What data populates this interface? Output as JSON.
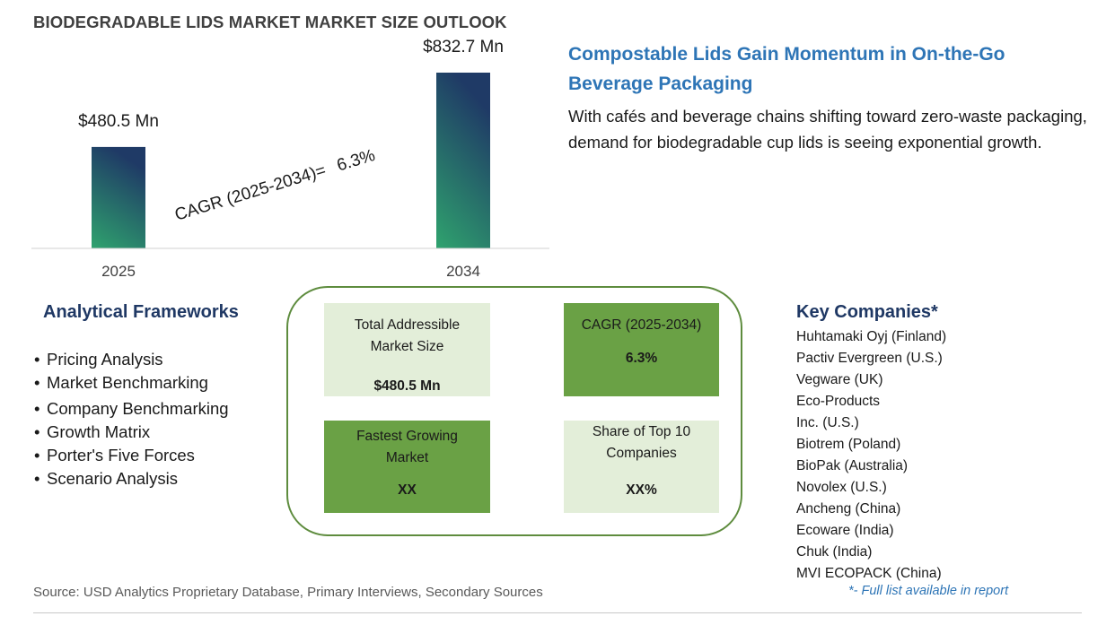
{
  "page": {
    "title": "BIODEGRADABLE LIDS MARKET MARKET SIZE OUTLOOK",
    "source": "Source: USD Analytics Proprietary Database, Primary Interviews, Secondary Sources"
  },
  "chart_data": {
    "type": "bar",
    "categories": [
      "2025",
      "2034"
    ],
    "values": [
      480.5,
      832.7
    ],
    "data_labels": [
      "$480.5 Mn",
      "$832.7 Mn"
    ],
    "ylim": [
      0,
      900
    ],
    "cagr_annotation": {
      "label": "CAGR (2025-2034)=",
      "value": "6.3%"
    },
    "grid": false,
    "bar_gradient": [
      "#2fa36e",
      "#1f3a66"
    ]
  },
  "highlight": {
    "headline": "Compostable Lids Gain Momentum in On-the-Go Beverage Packaging",
    "description": "With cafés and beverage chains shifting toward zero-waste packaging, demand for biodegradable cup lids is seeing exponential growth."
  },
  "frameworks": {
    "heading": "Analytical Frameworks",
    "items": [
      "Pricing Analysis",
      "Market Benchmarking",
      "Company Benchmarking",
      "Growth Matrix",
      "Porter's Five Forces",
      "Scenario Analysis"
    ]
  },
  "metrics": {
    "tam": {
      "label": "Total Addressible Market Size",
      "value": "$480.5 Mn"
    },
    "cagr": {
      "label": "CAGR (2025-2034)",
      "value": "6.3%"
    },
    "fastest": {
      "label": "Fastest Growing Market",
      "value": "XX"
    },
    "share": {
      "label": "Share of Top 10 Companies",
      "value": "XX%"
    }
  },
  "companies": {
    "heading": "Key Companies*",
    "items": [
      "Huhtamaki Oyj (Finland)",
      "Pactiv Evergreen (U.S.)",
      "Vegware (UK)",
      "Eco-Products",
      "Inc. (U.S.)",
      "Biotrem (Poland)",
      "BioPak (Australia)",
      "Novolex (U.S.)",
      "Ancheng (China)",
      "Ecoware (India)",
      "Chuk (India)",
      "MVI ECOPACK (China)"
    ],
    "footnote": "*- Full list available in report"
  },
  "colors": {
    "accent_blue": "#2e75b6",
    "heading_navy": "#1f3864",
    "tile_light": "#e3eed9",
    "tile_dark": "#6aa145",
    "frame_green": "#5e8c3e"
  }
}
